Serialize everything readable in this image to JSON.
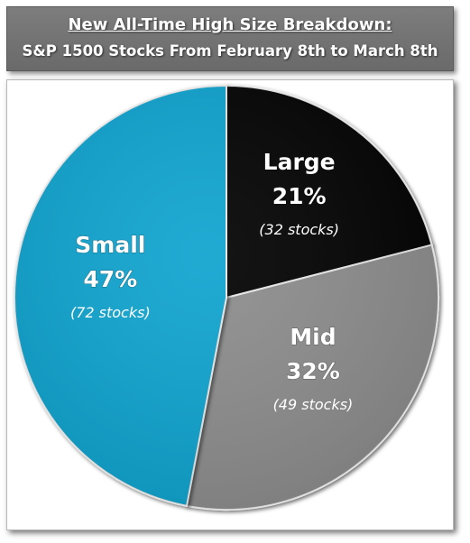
{
  "header": {
    "title": "New All-Time High Size Breakdown:",
    "subtitle": "S&P 1500 Stocks From February 8th to March 8th"
  },
  "chart_data": {
    "type": "pie",
    "title": "New All-Time High Size Breakdown:",
    "subtitle": "S&P 1500 Stocks From February 8th to March 8th",
    "slices": [
      {
        "name": "Large",
        "percent": 21,
        "percent_label": "21%",
        "count_label": "(32 stocks)",
        "color": "#000000",
        "text_color": "#ffffff",
        "count_color": "#ffffff"
      },
      {
        "name": "Mid",
        "percent": 32,
        "percent_label": "32%",
        "count_label": "(49 stocks)",
        "color": "#8c8c8c",
        "text_color": "#ffffff",
        "count_color": "#ffffff"
      },
      {
        "name": "Small",
        "percent": 47,
        "percent_label": "47%",
        "count_label": "(72 stocks)",
        "color": "#0fa3cf",
        "text_color": "#ffffff",
        "count_color": "#ffffff"
      }
    ]
  }
}
